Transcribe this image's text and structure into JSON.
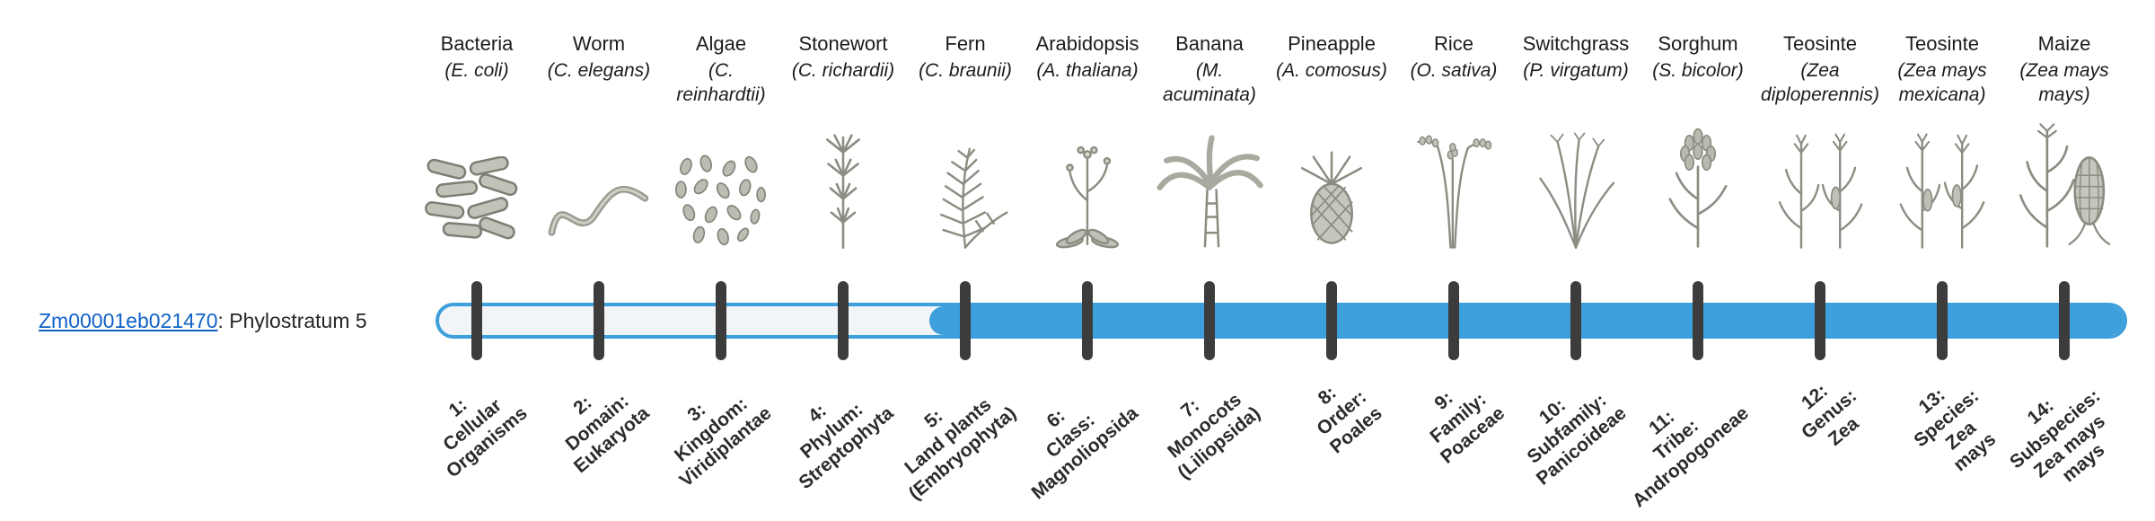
{
  "gene": {
    "id": "Zm00001eb021470",
    "suffix": ": Phylostratum 5",
    "phylostratum_fill_starts_at": 5
  },
  "colors": {
    "bar_blue": "#3d9fdc",
    "bar_empty": "#f2f5f8",
    "tick": "#3c3c3c",
    "link": "#0f62c9"
  },
  "taxa": [
    {
      "common": "Bacteria",
      "sci": "(E. coli)",
      "icon": "bacteria-icon",
      "ps_lines": [
        "1:",
        "Cellular",
        "Organisms"
      ]
    },
    {
      "common": "Worm",
      "sci": "(C. elegans)",
      "icon": "worm-icon",
      "ps_lines": [
        "2:",
        "Domain:",
        "Eukaryota"
      ]
    },
    {
      "common": "Algae",
      "sci": "(C. reinhardtii)",
      "icon": "algae-icon",
      "ps_lines": [
        "3:",
        "Kingdom:",
        "Viridiplantae"
      ]
    },
    {
      "common": "Stonewort",
      "sci": "(C. richardii)",
      "icon": "stonewort-icon",
      "ps_lines": [
        "4:",
        "Phylum:",
        "Streptophyta"
      ]
    },
    {
      "common": "Fern",
      "sci": "(C. braunii)",
      "icon": "fern-icon",
      "ps_lines": [
        "5:",
        "Land plants",
        "(Embryophyta)"
      ]
    },
    {
      "common": "Arabidopsis",
      "sci": "(A. thaliana)",
      "icon": "arabidopsis-icon",
      "ps_lines": [
        "6:",
        "Class:",
        "Magnoliopsida"
      ]
    },
    {
      "common": "Banana",
      "sci": "(M. acuminata)",
      "icon": "banana-icon",
      "ps_lines": [
        "7:",
        "Monocots",
        "(Liliopsida)"
      ]
    },
    {
      "common": "Pineapple",
      "sci": "(A. comosus)",
      "icon": "pineapple-icon",
      "ps_lines": [
        "8:",
        "Order:",
        "Poales"
      ]
    },
    {
      "common": "Rice",
      "sci": "(O. sativa)",
      "icon": "rice-icon",
      "ps_lines": [
        "9:",
        "Family:",
        "Poaceae"
      ]
    },
    {
      "common": "Switchgrass",
      "sci": "(P. virgatum)",
      "icon": "switchgrass-icon",
      "ps_lines": [
        "10:",
        "Subfamily:",
        "Panicoideae"
      ]
    },
    {
      "common": "Sorghum",
      "sci": "(S. bicolor)",
      "icon": "sorghum-icon",
      "ps_lines": [
        "11:",
        "Tribe:",
        "Andropogoneae"
      ]
    },
    {
      "common": "Teosinte",
      "sci": "(Zea diploperennis)",
      "icon": "teosinte-icon-1",
      "ps_lines": [
        "12:",
        "Genus:",
        "Zea"
      ]
    },
    {
      "common": "Teosinte",
      "sci": "(Zea mays mexicana)",
      "icon": "teosinte-icon-2",
      "ps_lines": [
        "13:",
        "Species:",
        "Zea",
        "mays"
      ]
    },
    {
      "common": "Maize",
      "sci": "(Zea mays mays)",
      "icon": "maize-icon",
      "ps_lines": [
        "14:",
        "Subspecies:",
        "Zea mays",
        "mays"
      ]
    }
  ]
}
